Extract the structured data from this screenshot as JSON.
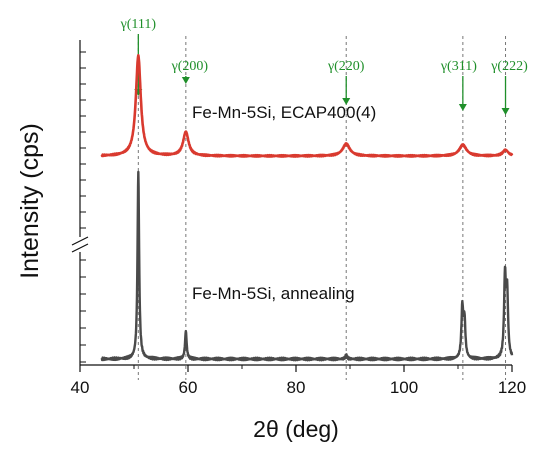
{
  "chart_data": {
    "type": "line",
    "xlabel": "2θ (deg)",
    "ylabel": "Intensity (cps)",
    "xlim": [
      40,
      120
    ],
    "x_ticks": [
      "40",
      "60",
      "80",
      "100",
      "120"
    ],
    "axis_break": true,
    "grid": false,
    "legend": "none",
    "peak_labels": [
      {
        "label": "γ(111)",
        "x": 50.8
      },
      {
        "label": "γ(200)",
        "x": 59.6
      },
      {
        "label": "γ(220)",
        "x": 89.3
      },
      {
        "label": "γ(311)",
        "x": 110.9
      },
      {
        "label": "γ(222)",
        "x": 118.8
      }
    ],
    "series": [
      {
        "name": "Fe-Mn-5Si, ECAP400(4)",
        "color": "#d93a2f",
        "baseline": 0.1,
        "peaks": [
          {
            "x": 50.8,
            "height": 1.0,
            "width": 0.55
          },
          {
            "x": 59.6,
            "height": 0.24,
            "width": 0.6
          },
          {
            "x": 89.3,
            "height": 0.12,
            "width": 0.8
          },
          {
            "x": 110.9,
            "height": 0.11,
            "width": 0.8
          },
          {
            "x": 118.8,
            "height": 0.06,
            "width": 0.6
          }
        ]
      },
      {
        "name": "Fe-Mn-5Si, annealing",
        "color": "#4a4a4a",
        "baseline": 0.0,
        "peaks": [
          {
            "x": 50.8,
            "height": 1.0,
            "width": 0.18
          },
          {
            "x": 59.6,
            "height": 0.15,
            "width": 0.18
          },
          {
            "x": 89.3,
            "height": 0.02,
            "width": 0.2
          },
          {
            "x": 110.8,
            "height": 0.27,
            "width": 0.2
          },
          {
            "x": 111.2,
            "height": 0.2,
            "width": 0.2
          },
          {
            "x": 118.7,
            "height": 0.43,
            "width": 0.2
          },
          {
            "x": 119.1,
            "height": 0.34,
            "width": 0.2
          }
        ]
      }
    ]
  }
}
